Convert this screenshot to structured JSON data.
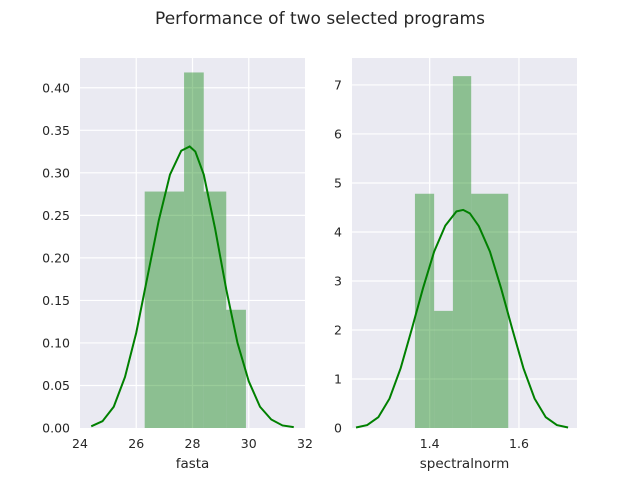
{
  "chart_data": {
    "suptitle": "Performance of two selected programs",
    "panels": [
      {
        "type": "histogram",
        "xlabel": "fasta",
        "ylabel": "",
        "xlim": [
          24,
          32
        ],
        "ylim": [
          0,
          0.435
        ],
        "xticks": [
          24,
          26,
          28,
          30,
          32
        ],
        "yticks": [
          0.0,
          0.05,
          0.1,
          0.15,
          0.2,
          0.25,
          0.3,
          0.35,
          0.4
        ],
        "ytick_decimals": 2,
        "xtick_decimals": 0,
        "grid": true,
        "color": "#008000",
        "bins": [
          {
            "x0": 26.3,
            "x1": 27.7,
            "density": 0.278
          },
          {
            "x0": 27.7,
            "x1": 28.4,
            "density": 0.418
          },
          {
            "x0": 28.4,
            "x1": 29.2,
            "density": 0.278
          },
          {
            "x0": 29.2,
            "x1": 29.9,
            "density": 0.139
          }
        ],
        "kde": {
          "x": [
            24.4,
            24.8,
            25.2,
            25.6,
            26.0,
            26.4,
            26.8,
            27.2,
            27.6,
            27.9,
            28.1,
            28.4,
            28.8,
            29.2,
            29.6,
            30.0,
            30.4,
            30.8,
            31.2,
            31.6
          ],
          "y": [
            0.002,
            0.008,
            0.025,
            0.06,
            0.112,
            0.178,
            0.244,
            0.298,
            0.326,
            0.331,
            0.325,
            0.298,
            0.235,
            0.163,
            0.1,
            0.055,
            0.025,
            0.01,
            0.003,
            0.001
          ]
        }
      },
      {
        "type": "histogram",
        "xlabel": "spectralnorm",
        "ylabel": "",
        "xlim": [
          1.226,
          1.73
        ],
        "ylim": [
          0,
          7.55
        ],
        "xticks": [
          1.4,
          1.6
        ],
        "yticks": [
          0,
          1,
          2,
          3,
          4,
          5,
          6,
          7
        ],
        "ytick_decimals": 0,
        "xtick_decimals": 1,
        "grid": true,
        "color": "#008000",
        "bins": [
          {
            "x0": 1.367,
            "x1": 1.41,
            "density": 4.78
          },
          {
            "x0": 1.41,
            "x1": 1.452,
            "density": 2.39
          },
          {
            "x0": 1.452,
            "x1": 1.493,
            "density": 7.18
          },
          {
            "x0": 1.493,
            "x1": 1.576,
            "density": 4.78
          }
        ],
        "kde": {
          "x": [
            1.235,
            1.26,
            1.285,
            1.31,
            1.335,
            1.36,
            1.385,
            1.41,
            1.435,
            1.46,
            1.475,
            1.49,
            1.51,
            1.535,
            1.56,
            1.585,
            1.61,
            1.635,
            1.66,
            1.685,
            1.71
          ],
          "y": [
            0.01,
            0.06,
            0.22,
            0.6,
            1.22,
            2.02,
            2.85,
            3.6,
            4.13,
            4.42,
            4.45,
            4.38,
            4.12,
            3.6,
            2.85,
            2.02,
            1.22,
            0.6,
            0.22,
            0.06,
            0.01
          ]
        }
      }
    ]
  }
}
